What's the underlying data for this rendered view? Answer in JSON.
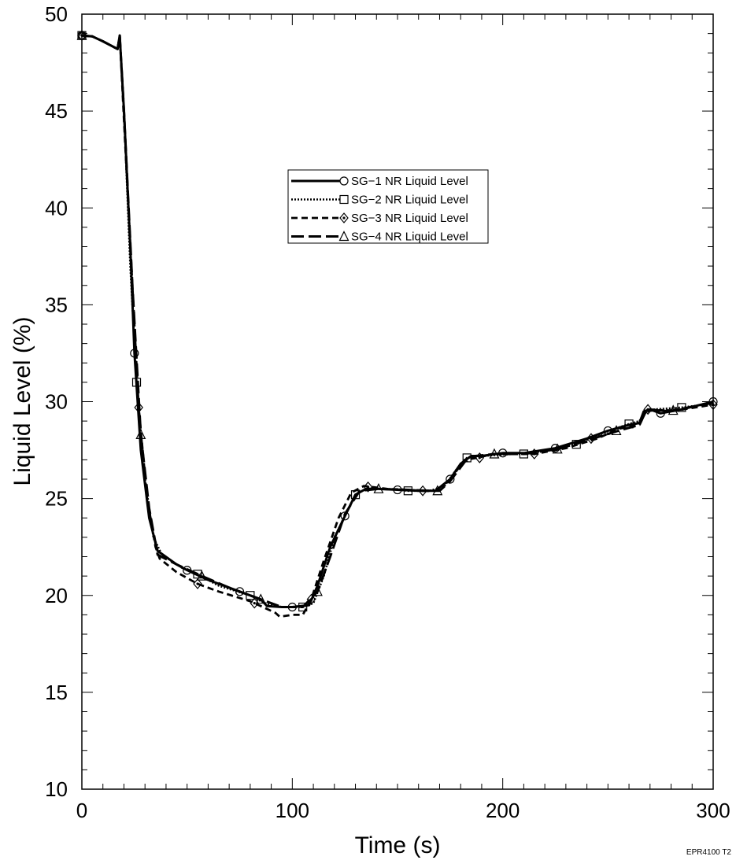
{
  "chart_data": {
    "type": "line",
    "title": "",
    "xlabel": "Time (s)",
    "ylabel": "Liquid Level (%)",
    "xlim": [
      0,
      300
    ],
    "ylim": [
      10,
      50
    ],
    "x_ticks": [
      0,
      100,
      200,
      300
    ],
    "x_tick_labels": [
      "0",
      "100",
      "200",
      "300"
    ],
    "y_ticks": [
      10,
      15,
      20,
      25,
      30,
      35,
      40,
      45,
      50
    ],
    "y_tick_labels": [
      "10",
      "15",
      "20",
      "25",
      "30",
      "35",
      "40",
      "45",
      "50"
    ],
    "grid": false,
    "legend_position": "upper-center",
    "annotation": "EPR4100 T2",
    "series": [
      {
        "name": "SG−1 NR Liquid Level",
        "line_style": "solid",
        "marker": "circle",
        "points": [
          [
            0,
            48.9
          ],
          [
            5,
            48.85
          ],
          [
            10,
            48.6
          ],
          [
            17,
            48.2
          ],
          [
            18,
            48.9
          ],
          [
            20,
            45
          ],
          [
            23,
            38
          ],
          [
            25,
            32.5
          ],
          [
            28,
            27.5
          ],
          [
            32,
            24
          ],
          [
            36,
            22.3
          ],
          [
            45,
            21.6
          ],
          [
            50,
            21.3
          ],
          [
            60,
            20.8
          ],
          [
            75,
            20.2
          ],
          [
            85,
            19.8
          ],
          [
            88,
            19.45
          ],
          [
            95,
            19.4
          ],
          [
            100,
            19.4
          ],
          [
            108,
            19.5
          ],
          [
            112,
            20.5
          ],
          [
            118,
            22.5
          ],
          [
            125,
            24.1
          ],
          [
            130,
            25.2
          ],
          [
            135,
            25.5
          ],
          [
            140,
            25.5
          ],
          [
            150,
            25.45
          ],
          [
            160,
            25.4
          ],
          [
            168,
            25.4
          ],
          [
            175,
            26
          ],
          [
            180,
            26.8
          ],
          [
            185,
            27.2
          ],
          [
            190,
            27.2
          ],
          [
            200,
            27.35
          ],
          [
            210,
            27.35
          ],
          [
            225,
            27.6
          ],
          [
            240,
            28.1
          ],
          [
            250,
            28.5
          ],
          [
            260,
            28.8
          ],
          [
            265,
            28.9
          ],
          [
            267,
            29.5
          ],
          [
            270,
            29.6
          ],
          [
            275,
            29.4
          ],
          [
            285,
            29.6
          ],
          [
            300,
            30
          ]
        ],
        "marker_points": [
          [
            0,
            48.9
          ],
          [
            25,
            32.5
          ],
          [
            50,
            21.3
          ],
          [
            75,
            20.2
          ],
          [
            100,
            19.4
          ],
          [
            125,
            24.1
          ],
          [
            150,
            25.45
          ],
          [
            175,
            26
          ],
          [
            200,
            27.35
          ],
          [
            225,
            27.6
          ],
          [
            250,
            28.5
          ],
          [
            275,
            29.4
          ],
          [
            300,
            30
          ]
        ]
      },
      {
        "name": "SG−2 NR Liquid Level",
        "line_style": "dotted",
        "marker": "square",
        "points": [
          [
            0,
            48.9
          ],
          [
            5,
            48.85
          ],
          [
            10,
            48.6
          ],
          [
            17,
            48.2
          ],
          [
            18,
            48.9
          ],
          [
            20,
            45
          ],
          [
            23,
            37
          ],
          [
            26,
            31
          ],
          [
            30,
            26
          ],
          [
            34,
            23
          ],
          [
            38,
            22.1
          ],
          [
            48,
            21.4
          ],
          [
            55,
            21.1
          ],
          [
            65,
            20.5
          ],
          [
            80,
            20
          ],
          [
            87,
            19.6
          ],
          [
            95,
            19.4
          ],
          [
            105,
            19.4
          ],
          [
            110,
            19.6
          ],
          [
            115,
            21
          ],
          [
            120,
            23
          ],
          [
            130,
            25.2
          ],
          [
            135,
            25.5
          ],
          [
            145,
            25.5
          ],
          [
            155,
            25.4
          ],
          [
            165,
            25.4
          ],
          [
            172,
            25.6
          ],
          [
            178,
            26.5
          ],
          [
            183,
            27.1
          ],
          [
            190,
            27.2
          ],
          [
            205,
            27.3
          ],
          [
            210,
            27.3
          ],
          [
            222,
            27.5
          ],
          [
            235,
            27.8
          ],
          [
            248,
            28.4
          ],
          [
            260,
            28.85
          ],
          [
            265,
            29
          ],
          [
            267,
            29.4
          ],
          [
            272,
            29.6
          ],
          [
            285,
            29.7
          ],
          [
            300,
            29.9
          ]
        ],
        "marker_points": [
          [
            0,
            48.9
          ],
          [
            26,
            31
          ],
          [
            55,
            21.1
          ],
          [
            80,
            20
          ],
          [
            105,
            19.4
          ],
          [
            130,
            25.2
          ],
          [
            155,
            25.4
          ],
          [
            183,
            27.1
          ],
          [
            210,
            27.3
          ],
          [
            235,
            27.8
          ],
          [
            260,
            28.85
          ],
          [
            285,
            29.7
          ]
        ]
      },
      {
        "name": "SG−3 NR Liquid Level",
        "line_style": "dashed",
        "marker": "diamond",
        "points": [
          [
            0,
            48.9
          ],
          [
            5,
            48.85
          ],
          [
            10,
            48.6
          ],
          [
            17,
            48.2
          ],
          [
            18,
            48.9
          ],
          [
            20,
            44.5
          ],
          [
            24,
            36
          ],
          [
            27,
            29.7
          ],
          [
            31,
            25
          ],
          [
            35,
            22.5
          ],
          [
            37,
            21.9
          ],
          [
            45,
            21.2
          ],
          [
            55,
            20.6
          ],
          [
            65,
            20.2
          ],
          [
            80,
            19.7
          ],
          [
            92,
            19.1
          ],
          [
            94,
            18.9
          ],
          [
            100,
            19
          ],
          [
            105,
            19
          ],
          [
            109,
            19.8
          ],
          [
            115,
            21.8
          ],
          [
            122,
            24
          ],
          [
            128,
            25.3
          ],
          [
            134,
            25.65
          ],
          [
            145,
            25.5
          ],
          [
            155,
            25.45
          ],
          [
            162,
            25.4
          ],
          [
            168,
            25.4
          ],
          [
            175,
            26
          ],
          [
            182,
            27
          ],
          [
            188,
            27.1
          ],
          [
            195,
            27.3
          ],
          [
            205,
            27.3
          ],
          [
            215,
            27.3
          ],
          [
            230,
            27.6
          ],
          [
            245,
            28.1
          ],
          [
            255,
            28.6
          ],
          [
            265,
            28.8
          ],
          [
            268,
            29.5
          ],
          [
            270,
            29.6
          ],
          [
            280,
            29.5
          ],
          [
            300,
            29.85
          ]
        ],
        "marker_points": [
          [
            0,
            48.9
          ],
          [
            27,
            29.7
          ],
          [
            55,
            20.6
          ],
          [
            82,
            19.6
          ],
          [
            109,
            19.8
          ],
          [
            136,
            25.6
          ],
          [
            162,
            25.4
          ],
          [
            189,
            27.1
          ],
          [
            215,
            27.3
          ],
          [
            242,
            28.1
          ],
          [
            269,
            29.6
          ],
          [
            300,
            29.85
          ]
        ]
      },
      {
        "name": "SG−4 NR Liquid Level",
        "line_style": "long-dash",
        "marker": "triangle",
        "points": [
          [
            0,
            48.9
          ],
          [
            5,
            48.85
          ],
          [
            10,
            48.6
          ],
          [
            17,
            48.2
          ],
          [
            18,
            48.9
          ],
          [
            20,
            45
          ],
          [
            24,
            36
          ],
          [
            28,
            28.3
          ],
          [
            32,
            24.5
          ],
          [
            36,
            22.1
          ],
          [
            45,
            21.6
          ],
          [
            57,
            21
          ],
          [
            70,
            20.4
          ],
          [
            85,
            19.8
          ],
          [
            95,
            19.4
          ],
          [
            105,
            19.4
          ],
          [
            112,
            20.2
          ],
          [
            118,
            22
          ],
          [
            125,
            24.2
          ],
          [
            132,
            25.4
          ],
          [
            141,
            25.5
          ],
          [
            155,
            25.45
          ],
          [
            165,
            25.4
          ],
          [
            170,
            25.4
          ],
          [
            175,
            25.9
          ],
          [
            182,
            26.9
          ],
          [
            187,
            27.2
          ],
          [
            196,
            27.3
          ],
          [
            210,
            27.3
          ],
          [
            226,
            27.55
          ],
          [
            240,
            28
          ],
          [
            255,
            28.5
          ],
          [
            265,
            28.8
          ],
          [
            268,
            29.5
          ],
          [
            271,
            29.55
          ],
          [
            281,
            29.55
          ],
          [
            300,
            29.95
          ]
        ],
        "marker_points": [
          [
            0,
            48.9
          ],
          [
            28,
            28.3
          ],
          [
            57,
            21
          ],
          [
            85,
            19.8
          ],
          [
            112,
            20.2
          ],
          [
            141,
            25.5
          ],
          [
            169,
            25.4
          ],
          [
            196,
            27.3
          ],
          [
            226,
            27.55
          ],
          [
            254,
            28.5
          ],
          [
            281,
            29.55
          ]
        ]
      }
    ]
  }
}
